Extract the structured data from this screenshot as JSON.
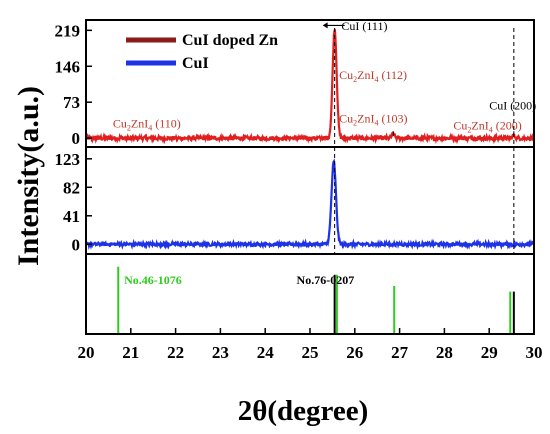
{
  "chart_data": {
    "type": "line",
    "xlabel": "2θ(degree)",
    "ylabel": "Intensity(a.u.)",
    "xlim": [
      20,
      30
    ],
    "x_ticks": [
      20,
      21,
      22,
      23,
      24,
      25,
      26,
      27,
      28,
      29,
      30
    ],
    "panels": [
      {
        "id": "top",
        "ylim": [
          -18,
          240
        ],
        "y_ticks": [
          0,
          73,
          146,
          219
        ],
        "series": [
          {
            "name": "CuI doped Zn",
            "color": "#e02020",
            "baseline": 0,
            "noise": 4,
            "peaks": [
              {
                "x": 25.55,
                "height": 222,
                "width": 0.045
              },
              {
                "x": 26.86,
                "height": 9,
                "width": 0.03
              },
              {
                "x": 29.55,
                "height": 5,
                "width": 0.03
              }
            ]
          }
        ],
        "annotations": [
          {
            "text": "Cu",
            "sub": "2",
            "mid": "ZnI",
            "sub2": "4",
            "tail": " (110)",
            "x": 20.6,
            "y": 22,
            "color": "red"
          },
          {
            "text": "Cu",
            "sub": "2",
            "mid": "ZnI",
            "sub2": "4",
            "tail": " (112)",
            "x": 25.65,
            "y": 120,
            "color": "red"
          },
          {
            "text": "Cu",
            "sub": "2",
            "mid": "ZnI",
            "sub2": "4",
            "tail": " (103)",
            "x": 25.65,
            "y": 32,
            "color": "red"
          },
          {
            "text": "Cu",
            "sub": "2",
            "mid": "ZnI",
            "sub2": "4",
            "tail": " (200)",
            "x": 28.2,
            "y": 18,
            "color": "red"
          },
          {
            "text": "CuI (111)",
            "x": 25.7,
            "y": 220,
            "color": "black"
          },
          {
            "text": "CuI (200)",
            "x": 29.0,
            "y": 58,
            "color": "black"
          }
        ],
        "marker_lines": [
          26.86,
          29.55
        ]
      },
      {
        "id": "middle",
        "ylim": [
          -14,
          140
        ],
        "y_ticks": [
          0,
          41,
          82,
          123
        ],
        "series": [
          {
            "name": "CuI",
            "color": "#1e32e6",
            "baseline": 0,
            "noise": 2.5,
            "peaks": [
              {
                "x": 25.53,
                "height": 118,
                "width": 0.05
              }
            ]
          }
        ]
      },
      {
        "id": "reference",
        "sticks": [
          {
            "x": 20.72,
            "height": 0.84,
            "color": "#2ecc1f"
          },
          {
            "x": 25.55,
            "height": 0.74,
            "color": "#000000"
          },
          {
            "x": 25.6,
            "height": 0.74,
            "color": "#2ecc1f"
          },
          {
            "x": 26.88,
            "height": 0.6,
            "color": "#2ecc1f"
          },
          {
            "x": 29.47,
            "height": 0.53,
            "color": "#2ecc1f"
          },
          {
            "x": 29.55,
            "height": 0.53,
            "color": "#000000"
          }
        ],
        "labels": [
          {
            "text": "No.46-1076",
            "x": 20.85,
            "color": "green"
          },
          {
            "text": "No.76-0207",
            "x": 24.7,
            "color": "black"
          }
        ]
      }
    ],
    "legend": {
      "placement": "top-left",
      "entries": [
        {
          "label": "CuI doped Zn",
          "color": "#8b1a1a"
        },
        {
          "label": "CuI",
          "color": "#1e32e6"
        }
      ]
    },
    "dashed_lines": [
      25.55,
      29.55
    ]
  }
}
